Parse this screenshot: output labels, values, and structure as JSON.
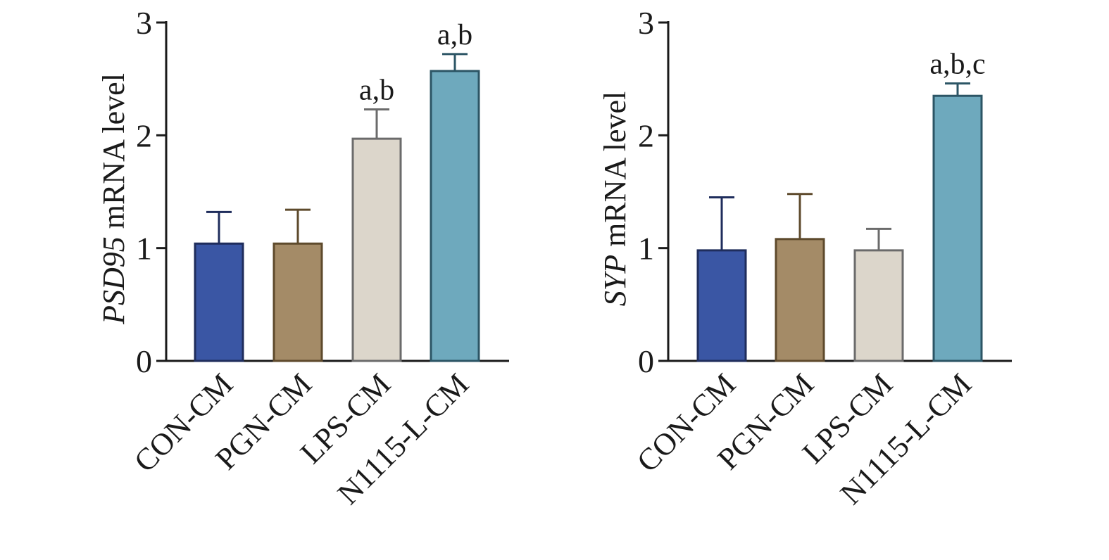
{
  "chart_data": [
    {
      "type": "bar",
      "ylabel": "PSD95 mRNA level",
      "ylabel_italic_part": "PSD95",
      "ylabel_rest": " mRNA level",
      "categories": [
        "CON-CM",
        "PGN-CM",
        "LPS-CM",
        "N1115-L-CM"
      ],
      "values": [
        1.04,
        1.04,
        1.97,
        2.57
      ],
      "errors": [
        0.28,
        0.3,
        0.26,
        0.15
      ],
      "annotations": [
        "",
        "",
        "a,b",
        "a,b"
      ],
      "ylim": [
        0,
        3
      ],
      "yticks": [
        "0",
        "1",
        "2",
        "3"
      ],
      "colors": [
        "#3a56a4",
        "#a48b67",
        "#dcd6cb",
        "#6ea9bd"
      ],
      "edge_colors": [
        "#1f2d5c",
        "#5e4a2c",
        "#6b6b6b",
        "#2c5565"
      ],
      "grid": false
    },
    {
      "type": "bar",
      "ylabel": "SYP mRNA level",
      "ylabel_italic_part": "SYP",
      "ylabel_rest": " mRNA level",
      "categories": [
        "CON-CM",
        "PGN-CM",
        "LPS-CM",
        "N1115-L-CM"
      ],
      "values": [
        0.98,
        1.08,
        0.98,
        2.35
      ],
      "errors": [
        0.47,
        0.4,
        0.19,
        0.11
      ],
      "annotations": [
        "",
        "",
        "",
        "a,b,c"
      ],
      "ylim": [
        0,
        3
      ],
      "yticks": [
        "0",
        "1",
        "2",
        "3"
      ],
      "colors": [
        "#3a56a4",
        "#a48b67",
        "#dcd6cb",
        "#6ea9bd"
      ],
      "edge_colors": [
        "#1f2d5c",
        "#5e4a2c",
        "#6b6b6b",
        "#2c5565"
      ],
      "grid": false
    }
  ]
}
